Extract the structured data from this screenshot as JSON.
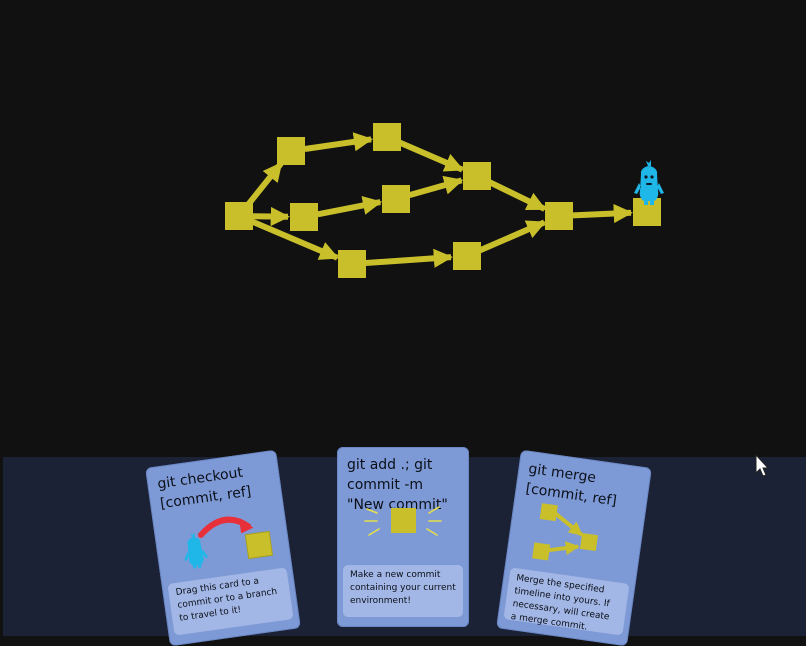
{
  "colors": {
    "background": "#111111",
    "commit": "#c8bf2b",
    "arrow": "#c8bf2b",
    "player": "#1fb6e8",
    "hand_bg": "#1b2236",
    "card": "#7e9ad6",
    "card_desc": "#a3b7e6",
    "checkout_arrow": "#e8303a"
  },
  "graph": {
    "head_character": "blue-creature-icon",
    "commit_count": 11
  },
  "cards": [
    {
      "id": "checkout",
      "title": "git checkout [commit, ref]",
      "description": "Drag this card to a commit or to a branch to travel to it!",
      "icon": "checkout-illustration"
    },
    {
      "id": "add",
      "title": "git add .; git commit -m \"New commit\"",
      "description": "Make a new commit containing your current environment!",
      "icon": "new-commit-illustration"
    },
    {
      "id": "merge",
      "title": "git merge [commit, ref]",
      "description": "Merge the specified timeline into yours. If necessary, will create a merge commit.",
      "icon": "merge-illustration"
    }
  ]
}
